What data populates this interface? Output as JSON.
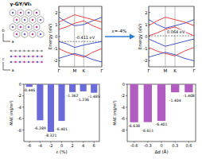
{
  "chart_data": [
    {
      "type": "line",
      "y_label": "Energy (eV)",
      "x": [
        0,
        0.5,
        1,
        1.3,
        1.58,
        2.15,
        2.73
      ],
      "xlim": [
        0,
        2.73
      ],
      "xticks": [
        {
          "value": 0,
          "label": "Γ"
        },
        {
          "value": 1,
          "label": "M"
        },
        {
          "value": 1.58,
          "label": "K"
        },
        {
          "value": 2.73,
          "label": "Γ"
        }
      ],
      "ylim": [
        -2.5,
        2.5
      ],
      "yticks": [
        -2,
        -1,
        0,
        1,
        2
      ],
      "annotations": [
        {
          "text": "-0.411 eV",
          "y": -0.411
        }
      ],
      "series": [
        {
          "color": "#3040c0",
          "values": [
            1.6,
            1.2,
            0.9,
            0.95,
            1.0,
            1.3,
            1.6
          ]
        },
        {
          "color": "#e03030",
          "values": [
            1.2,
            1.5,
            1.8,
            1.7,
            1.6,
            1.4,
            1.2
          ]
        },
        {
          "color": "#e03030",
          "values": [
            0.6,
            0.8,
            1.1,
            1.2,
            1.3,
            0.9,
            0.6
          ]
        },
        {
          "color": "#3040c0",
          "values": [
            -0.41,
            -0.6,
            -0.9,
            -0.8,
            -0.7,
            -0.55,
            -0.41
          ]
        },
        {
          "color": "#e03030",
          "values": [
            -1.0,
            -1.3,
            -1.5,
            -1.6,
            -1.7,
            -1.3,
            -1.0
          ]
        },
        {
          "color": "#3040c0",
          "values": [
            -1.8,
            -1.6,
            -1.4,
            -1.5,
            -1.6,
            -1.9,
            -2.1
          ]
        }
      ]
    },
    {
      "type": "line",
      "y_label": "Energy (eV)",
      "x": [
        0,
        0.5,
        1,
        1.3,
        1.58,
        2.15,
        2.73
      ],
      "xlim": [
        0,
        2.73
      ],
      "xticks": [
        {
          "value": 0,
          "label": "Γ"
        },
        {
          "value": 1,
          "label": "M"
        },
        {
          "value": 1.58,
          "label": "K"
        },
        {
          "value": 2.73,
          "label": "Γ"
        }
      ],
      "ylim": [
        -2.5,
        2.5
      ],
      "yticks": [
        -2,
        -1,
        0,
        1,
        2
      ],
      "annotations": [
        {
          "text": "0.064 eV",
          "y": 0.064
        }
      ],
      "series": [
        {
          "color": "#3040c0",
          "values": [
            1.4,
            1.0,
            0.7,
            0.8,
            0.9,
            1.1,
            1.4
          ]
        },
        {
          "color": "#e03030",
          "values": [
            0.9,
            1.3,
            1.6,
            1.5,
            1.4,
            1.2,
            0.9
          ]
        },
        {
          "color": "#e03030",
          "values": [
            0.064,
            0.3,
            0.6,
            0.7,
            0.8,
            0.4,
            0.064
          ]
        },
        {
          "color": "#3040c0",
          "values": [
            -0.2,
            -0.5,
            -0.8,
            -0.7,
            -0.6,
            -0.4,
            -0.2
          ]
        },
        {
          "color": "#e03030",
          "values": [
            -0.9,
            -1.2,
            -1.4,
            -1.5,
            -1.6,
            -1.2,
            -0.9
          ]
        },
        {
          "color": "#3040c0",
          "values": [
            -1.7,
            -1.5,
            -1.3,
            -1.4,
            -1.5,
            -1.8,
            -2.0
          ]
        }
      ]
    },
    {
      "type": "bar",
      "y_label": "MAE (mJ/m²)",
      "x_label": "ε (%)",
      "categories": [
        -6,
        -4,
        -2,
        0,
        2,
        4,
        6
      ],
      "values": [
        -0.446,
        -6.289,
        -8.321,
        -6.401,
        -1.362,
        -1.236,
        -1.485
      ],
      "color": "#6a6ad8",
      "ylim": [
        -10,
        0
      ],
      "yticks": [
        0,
        -2,
        -4,
        -6,
        -8
      ],
      "data_labels": true
    },
    {
      "type": "bar",
      "y_label": "MAE (mJ/m²)",
      "x_label": "Δd (Å)",
      "categories": [
        -0.6,
        -0.3,
        0,
        0.3,
        0.6
      ],
      "values": [
        -6.638,
        -6.611,
        -6.401,
        -1.404,
        -1.408
      ],
      "color": "#b05cc0",
      "ylim": [
        -10,
        0
      ],
      "yticks": [
        0,
        -2,
        -4,
        -6,
        -8
      ],
      "data_labels": true
    }
  ],
  "structure": {
    "title": "γ-GY/VI₃",
    "axis_labels": [
      "a",
      "b",
      "c",
      "a"
    ]
  },
  "transition": {
    "label": "ε=-4%"
  }
}
